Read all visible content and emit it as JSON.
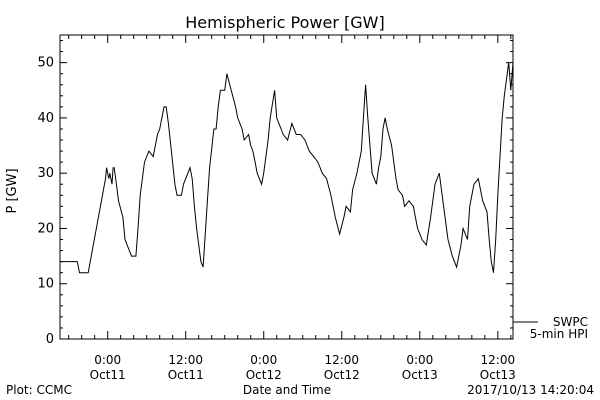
{
  "chart_data": {
    "type": "line",
    "title": "Hemispheric Power [GW]",
    "xlabel": "Date and Time",
    "ylabel": "P [GW]",
    "ylim": [
      0,
      55
    ],
    "yticks": [
      0,
      10,
      20,
      30,
      40,
      50
    ],
    "xlim": [
      "2017-10-10T16:40",
      "2017-10-13T14:20"
    ],
    "x_major_ticks": [
      {
        "x": "2017-10-11T00:00",
        "time": "0:00",
        "date": "Oct11"
      },
      {
        "x": "2017-10-11T12:00",
        "time": "12:00",
        "date": "Oct11"
      },
      {
        "x": "2017-10-12T00:00",
        "time": "0:00",
        "date": "Oct12"
      },
      {
        "x": "2017-10-12T12:00",
        "time": "12:00",
        "date": "Oct12"
      },
      {
        "x": "2017-10-13T00:00",
        "time": "0:00",
        "date": "Oct13"
      },
      {
        "x": "2017-10-13T12:00",
        "time": "12:00",
        "date": "Oct13"
      }
    ],
    "legend": {
      "position": "right",
      "source": "SWPC",
      "label": "5-min HPI",
      "value": 3
    },
    "series": [
      {
        "name": "SWPC 5-min HPI",
        "x": [
          "2017-10-10T16:40",
          "2017-10-10T19:20",
          "2017-10-10T19:40",
          "2017-10-10T21:00",
          "2017-10-10T23:40",
          "2017-10-10T23:50",
          "2017-10-11T00:10",
          "2017-10-11T00:20",
          "2017-10-11T00:40",
          "2017-10-11T00:50",
          "2017-10-11T01:00",
          "2017-10-11T01:20",
          "2017-10-11T01:40",
          "2017-10-11T02:20",
          "2017-10-11T02:40",
          "2017-10-11T03:40",
          "2017-10-11T04:20",
          "2017-10-11T04:40",
          "2017-10-11T05:00",
          "2017-10-11T05:40",
          "2017-10-11T06:20",
          "2017-10-11T07:00",
          "2017-10-11T07:40",
          "2017-10-11T08:00",
          "2017-10-11T08:40",
          "2017-10-11T09:00",
          "2017-10-11T09:20",
          "2017-10-11T10:20",
          "2017-10-11T10:40",
          "2017-10-11T11:20",
          "2017-10-11T11:40",
          "2017-10-11T12:20",
          "2017-10-11T12:40",
          "2017-10-11T13:00",
          "2017-10-11T13:20",
          "2017-10-11T13:40",
          "2017-10-11T14:20",
          "2017-10-11T14:40",
          "2017-10-11T15:20",
          "2017-10-11T15:40",
          "2017-10-11T16:20",
          "2017-10-11T16:40",
          "2017-10-11T17:00",
          "2017-10-11T17:20",
          "2017-10-11T18:00",
          "2017-10-11T18:20",
          "2017-10-11T19:00",
          "2017-10-11T19:40",
          "2017-10-11T20:00",
          "2017-10-11T20:40",
          "2017-10-11T21:00",
          "2017-10-11T21:40",
          "2017-10-11T22:00",
          "2017-10-11T22:20",
          "2017-10-11T22:40",
          "2017-10-11T23:00",
          "2017-10-11T23:40",
          "2017-10-12T00:00",
          "2017-10-12T00:40",
          "2017-10-12T01:00",
          "2017-10-12T01:40",
          "2017-10-12T02:00",
          "2017-10-12T02:40",
          "2017-10-12T03:00",
          "2017-10-12T03:40",
          "2017-10-12T04:20",
          "2017-10-12T05:00",
          "2017-10-12T05:40",
          "2017-10-12T06:20",
          "2017-10-12T07:00",
          "2017-10-12T07:40",
          "2017-10-12T08:20",
          "2017-10-12T09:00",
          "2017-10-12T09:40",
          "2017-10-12T10:20",
          "2017-10-12T11:00",
          "2017-10-12T11:40",
          "2017-10-12T12:20",
          "2017-10-12T12:40",
          "2017-10-12T13:20",
          "2017-10-12T13:40",
          "2017-10-12T14:20",
          "2017-10-12T15:00",
          "2017-10-12T15:20",
          "2017-10-12T15:40",
          "2017-10-12T16:00",
          "2017-10-12T16:40",
          "2017-10-12T17:20",
          "2017-10-12T17:40",
          "2017-10-12T18:00",
          "2017-10-12T18:20",
          "2017-10-12T18:40",
          "2017-10-12T19:00",
          "2017-10-12T19:40",
          "2017-10-12T20:20",
          "2017-10-12T20:40",
          "2017-10-12T21:20",
          "2017-10-12T21:40",
          "2017-10-12T22:20",
          "2017-10-12T23:00",
          "2017-10-12T23:40",
          "2017-10-13T00:20",
          "2017-10-13T01:00",
          "2017-10-13T01:40",
          "2017-10-13T02:20",
          "2017-10-13T03:00",
          "2017-10-13T03:40",
          "2017-10-13T04:20",
          "2017-10-13T05:00",
          "2017-10-13T05:40",
          "2017-10-13T06:20",
          "2017-10-13T06:40",
          "2017-10-13T07:20",
          "2017-10-13T07:40",
          "2017-10-13T08:20",
          "2017-10-13T09:00",
          "2017-10-13T09:40",
          "2017-10-13T10:20",
          "2017-10-13T10:40",
          "2017-10-13T11:00",
          "2017-10-13T11:20",
          "2017-10-13T11:40",
          "2017-10-13T12:00",
          "2017-10-13T12:20",
          "2017-10-13T12:40",
          "2017-10-13T13:00",
          "2017-10-13T13:20",
          "2017-10-13T13:40",
          "2017-10-13T14:00",
          "2017-10-13T14:20"
        ],
        "y": [
          14,
          14,
          12,
          12,
          29,
          31,
          29,
          30,
          28,
          31,
          31,
          28,
          25,
          22,
          18,
          15,
          15,
          20,
          26,
          32,
          34,
          33,
          37,
          38,
          42,
          42,
          39,
          28,
          26,
          26,
          28,
          30,
          31,
          29,
          24,
          20,
          14,
          13,
          25,
          31,
          38,
          38,
          42,
          45,
          45,
          48,
          45,
          42,
          40,
          38,
          36,
          37,
          35,
          34,
          32,
          30,
          28,
          30,
          36,
          40,
          45,
          40,
          38,
          37,
          36,
          39,
          37,
          37,
          36,
          34,
          33,
          32,
          30,
          29,
          26,
          22,
          19,
          22,
          24,
          23,
          27,
          30,
          34,
          40,
          46,
          40,
          30,
          28,
          31,
          33,
          38,
          40,
          38,
          35,
          29,
          27,
          26,
          24,
          25,
          24,
          20,
          18,
          17,
          22,
          28,
          30,
          24,
          18,
          15,
          13,
          17,
          20,
          18,
          24,
          28,
          29,
          25,
          23,
          18,
          14,
          12,
          18,
          26,
          33,
          40,
          44,
          47,
          50,
          45,
          50
        ]
      }
    ],
    "footer": {
      "left": "Plot: CCMC",
      "center": "Date and Time",
      "right": "2017/10/13 14:20:04"
    }
  }
}
